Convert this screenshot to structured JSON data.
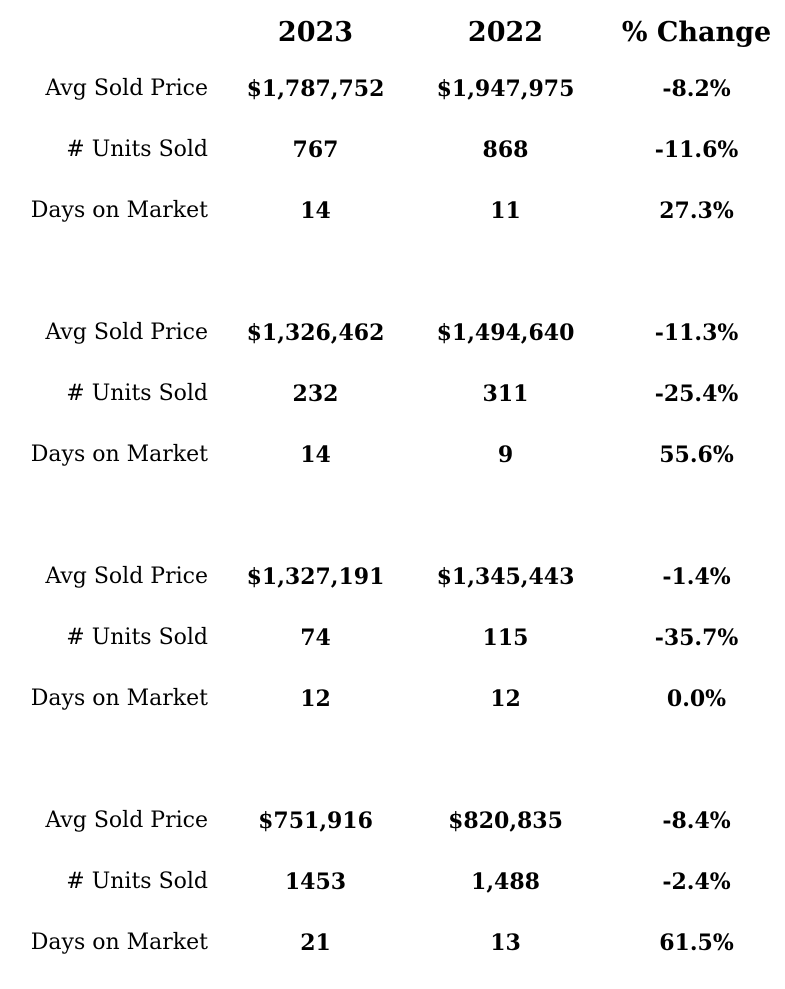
{
  "chart_data": {
    "type": "table",
    "title": "",
    "columns": [
      "",
      "2023",
      "2022",
      "% Change"
    ],
    "row_labels": [
      "Avg Sold Price",
      "# Units Sold",
      "Days on Market"
    ],
    "groups_note": "4 stat groups, each with 3 rows, separated by blank rows",
    "rows": [
      [
        "Avg Sold Price",
        "$1,787,752",
        "$1,947,975",
        "-8.2%"
      ],
      [
        "# Units Sold",
        "767",
        "868",
        "-11.6%"
      ],
      [
        "Days on Market",
        "14",
        "11",
        "27.3%"
      ],
      [
        "Avg Sold Price",
        "$1,326,462",
        "$1,494,640",
        "-11.3%"
      ],
      [
        "# Units Sold",
        "232",
        "311",
        "-25.4%"
      ],
      [
        "Days on Market",
        "14",
        "9",
        "55.6%"
      ],
      [
        "Avg Sold Price",
        "$1,327,191",
        "$1,345,443",
        "-1.4%"
      ],
      [
        "# Units Sold",
        "74",
        "115",
        "-35.7%"
      ],
      [
        "Days on Market",
        "12",
        "12",
        "0.0%"
      ],
      [
        "Avg Sold Price",
        "$751,916",
        "$820,835",
        "-8.4%"
      ],
      [
        "# Units Sold",
        "1453",
        "1,488",
        "-2.4%"
      ],
      [
        "Days on Market",
        "21",
        "13",
        "61.5%"
      ]
    ]
  }
}
